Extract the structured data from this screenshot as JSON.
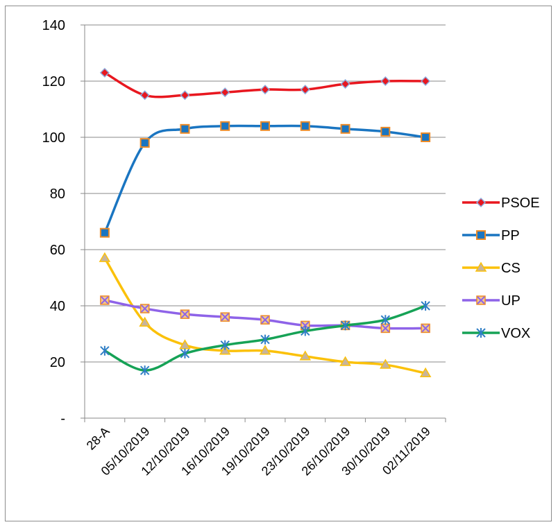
{
  "chart_data": {
    "type": "line",
    "title": "",
    "xlabel": "",
    "ylabel": "",
    "categories": [
      "28-A",
      "05/10/2019",
      "12/10/2019",
      "16/10/2019",
      "19/10/2019",
      "23/10/2019",
      "26/10/2019",
      "30/10/2019",
      "02/11/2019"
    ],
    "ylim": [
      0,
      140
    ],
    "y_ticks": [
      {
        "value": 0,
        "label": "-"
      },
      {
        "value": 20,
        "label": "20"
      },
      {
        "value": 40,
        "label": "40"
      },
      {
        "value": 60,
        "label": "60"
      },
      {
        "value": 80,
        "label": "80"
      },
      {
        "value": 100,
        "label": "100"
      },
      {
        "value": 120,
        "label": "120"
      },
      {
        "value": 140,
        "label": "140"
      }
    ],
    "grid": true,
    "legend_position": "right",
    "series": [
      {
        "name": "PSOE",
        "color": "#e8171f",
        "marker": "diamond",
        "marker_fill": "#e8171f",
        "marker_stroke": "#8eaadb",
        "values": [
          123,
          115,
          115,
          116,
          117,
          117,
          119,
          120,
          120
        ]
      },
      {
        "name": "PP",
        "color": "#1a75c1",
        "marker": "square",
        "marker_fill": "#1a75c1",
        "marker_stroke": "#ed8b27",
        "values": [
          66,
          98,
          103,
          104,
          104,
          104,
          103,
          102,
          100
        ]
      },
      {
        "name": "CS",
        "color": "#fbc10a",
        "marker": "triangle",
        "marker_fill": "#c8b49a",
        "marker_stroke": "#fbc10a",
        "values": [
          57,
          34,
          26,
          24,
          24,
          22,
          20,
          19,
          16
        ]
      },
      {
        "name": "UP",
        "color": "#8e63e8",
        "marker": "x-box",
        "marker_fill": "#8e63e8",
        "marker_stroke": "#ed8b27",
        "values": [
          42,
          39,
          37,
          36,
          35,
          33,
          33,
          32,
          32
        ]
      },
      {
        "name": "VOX",
        "color": "#16a256",
        "marker": "star",
        "marker_fill": "#2f7ec5",
        "marker_stroke": "#2f7ec5",
        "values": [
          24,
          17,
          23,
          26,
          28,
          31,
          33,
          35,
          40
        ]
      }
    ]
  }
}
